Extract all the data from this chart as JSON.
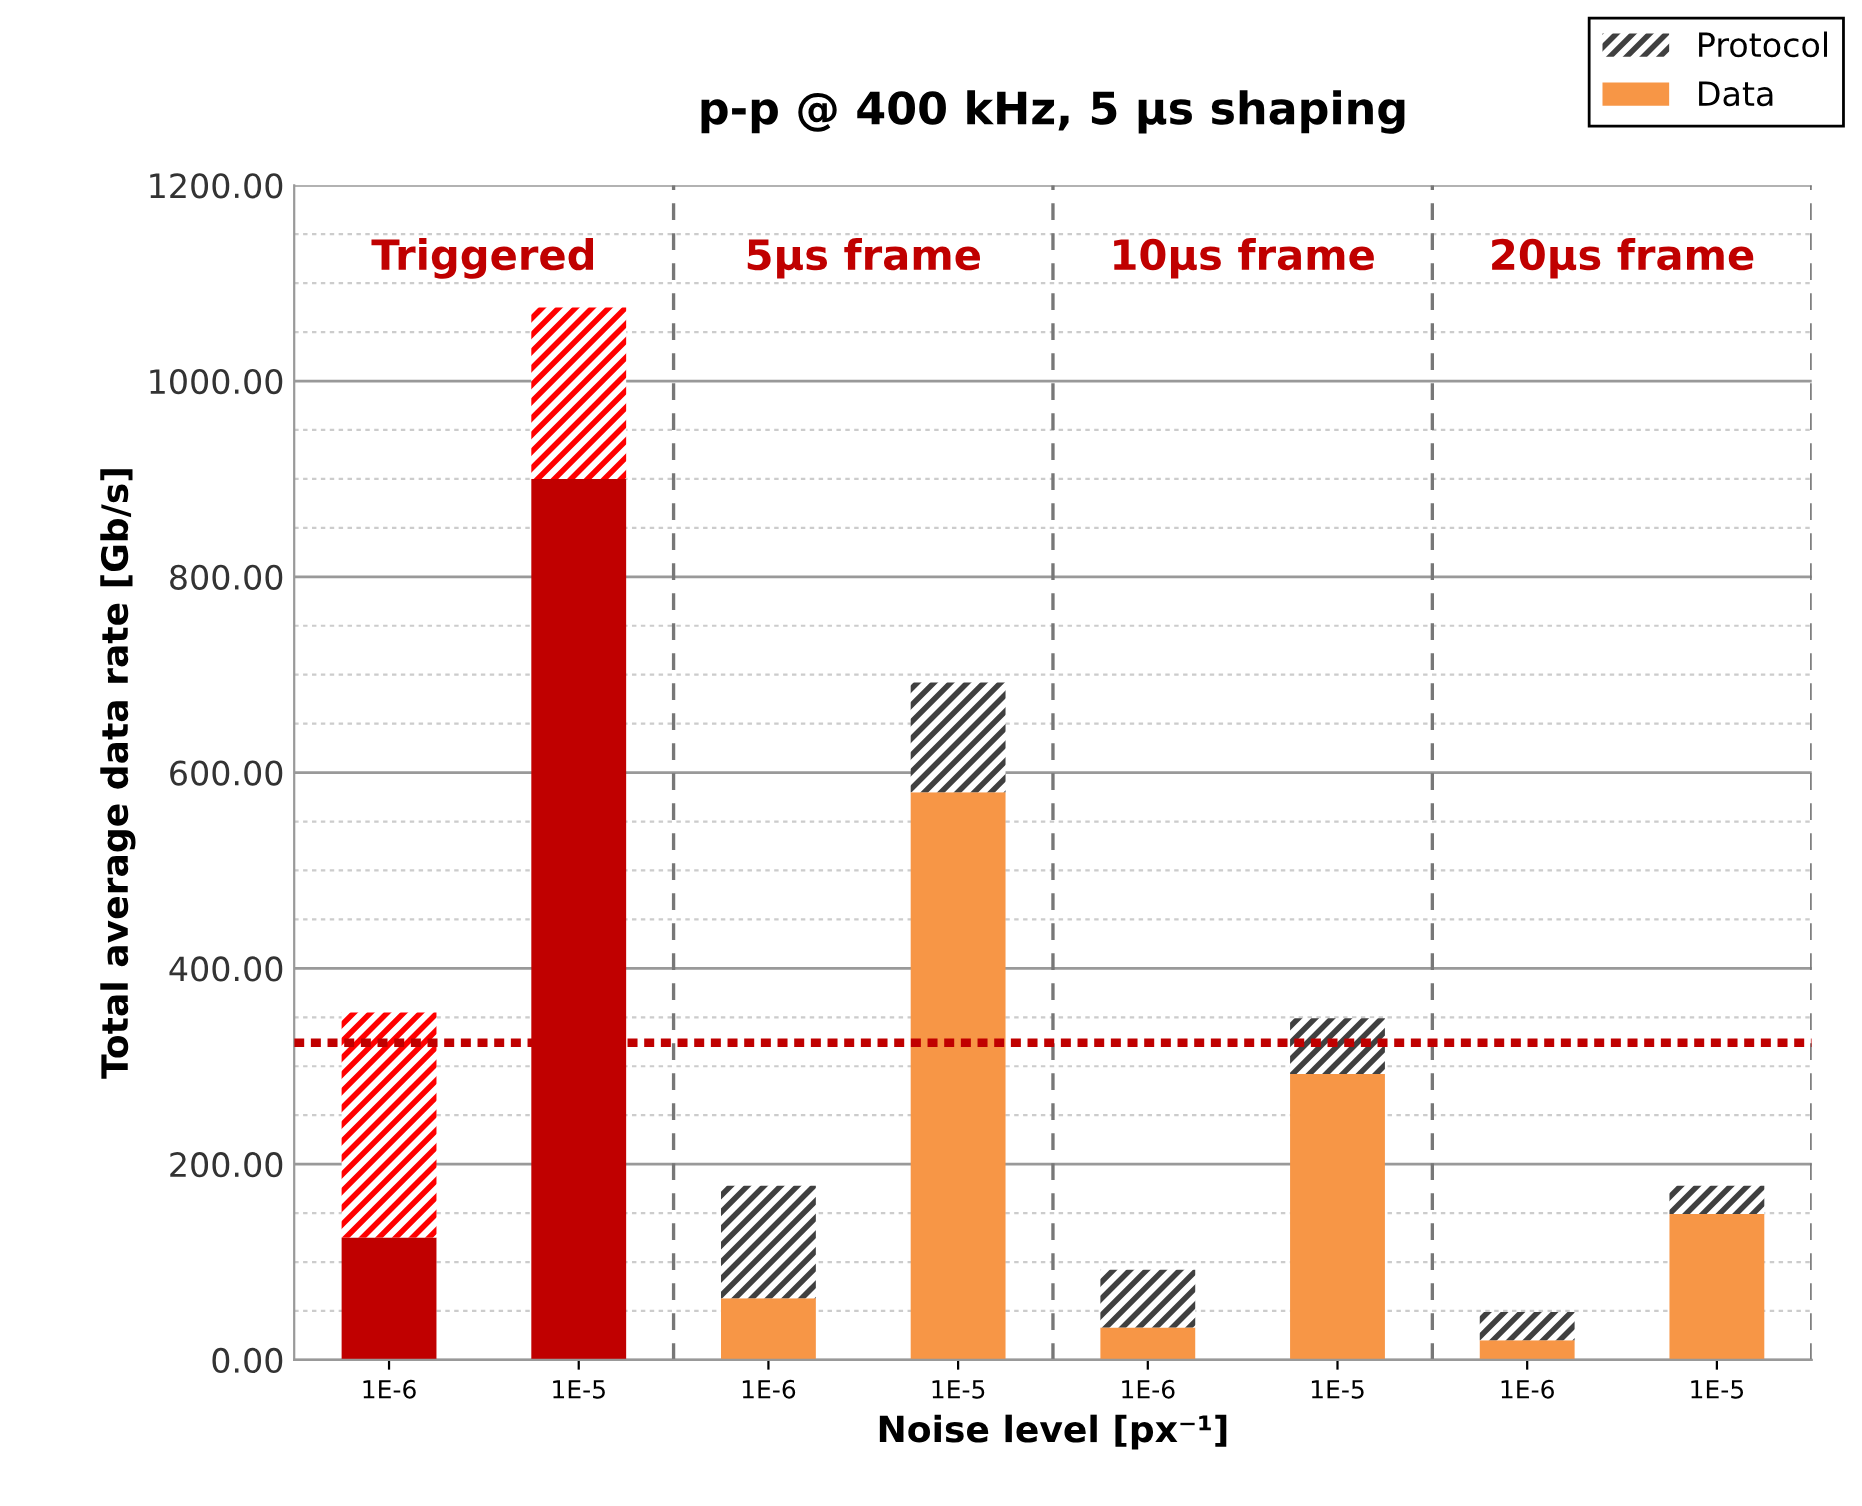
{
  "chart_data": {
    "type": "bar",
    "title": "p-p @ 400 kHz, 5 µs shaping",
    "xlabel": "Noise level [px⁻¹]",
    "ylabel": "Total average data rate [Gb/s]",
    "categories": [
      "1E-6",
      "1E-5",
      "1E-6",
      "1E-5",
      "1E-6",
      "1E-5",
      "1E-6",
      "1E-5"
    ],
    "stacked": true,
    "series": [
      {
        "name": "Data",
        "color": "#f79646",
        "colors": [
          "#c00000",
          "#c00000",
          "#f79646",
          "#f79646",
          "#f79646",
          "#f79646",
          "#f79646",
          "#f79646"
        ],
        "values": [
          125,
          900,
          63,
          580,
          33,
          292,
          20,
          149
        ]
      },
      {
        "name": "Protocol",
        "color": "#404040",
        "colors": [
          "#ff0000",
          "#ff0000",
          "#404040",
          "#404040",
          "#404040",
          "#404040",
          "#404040",
          "#404040"
        ],
        "values": [
          230,
          175,
          115,
          112,
          59,
          57,
          29,
          29
        ]
      }
    ],
    "annotations": [
      "Triggered",
      "5µs frame",
      "10µs frame",
      "20µs frame"
    ],
    "ref_lines": [
      {
        "axis": "y",
        "value": 324,
        "color": "#c00000",
        "line_style": "dotted"
      }
    ],
    "ylim": [
      0,
      1200
    ],
    "yticks": [
      {
        "value": 0,
        "label": "0.00"
      },
      {
        "value": 50,
        "label": null
      },
      {
        "value": 100,
        "label": null
      },
      {
        "value": 150,
        "label": null
      },
      {
        "value": 200,
        "label": "200.00"
      },
      {
        "value": 250,
        "label": null
      },
      {
        "value": 300,
        "label": null
      },
      {
        "value": 350,
        "label": null
      },
      {
        "value": 400,
        "label": "400.00"
      },
      {
        "value": 450,
        "label": null
      },
      {
        "value": 500,
        "label": null
      },
      {
        "value": 550,
        "label": null
      },
      {
        "value": 600,
        "label": "600.00"
      },
      {
        "value": 650,
        "label": null
      },
      {
        "value": 700,
        "label": null
      },
      {
        "value": 750,
        "label": null
      },
      {
        "value": 800,
        "label": "800.00"
      },
      {
        "value": 850,
        "label": null
      },
      {
        "value": 900,
        "label": null
      },
      {
        "value": 950,
        "label": null
      },
      {
        "value": 1000,
        "label": "1000.00"
      },
      {
        "value": 1050,
        "label": null
      },
      {
        "value": 1100,
        "label": null
      },
      {
        "value": 1150,
        "label": null
      },
      {
        "value": 1200,
        "label": "1200.00"
      }
    ],
    "grid": "y",
    "legend": "top right"
  }
}
